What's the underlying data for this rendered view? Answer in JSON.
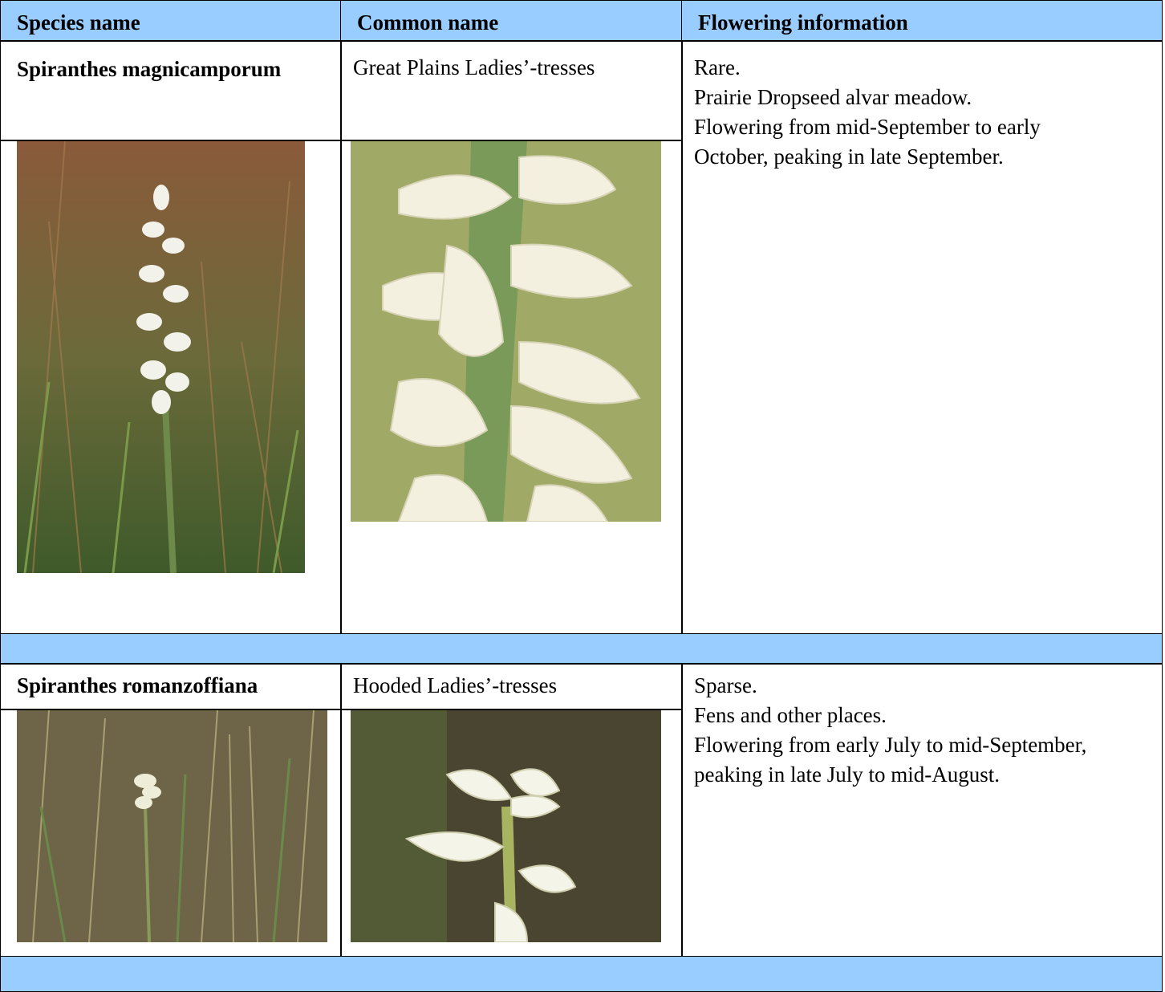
{
  "table": {
    "header": [
      "Species name",
      "Common name",
      "Flowering information"
    ],
    "rows": [
      {
        "species": "Spiranthes magnicamporum",
        "common": "Great Plains Ladies’-tresses",
        "flowering": [
          "Rare.",
          "Prairie Dropseed alvar meadow.",
          "Flowering from mid-September to early October, peaking in late September."
        ]
      },
      {
        "species": "Spiranthes romanzoffiana",
        "common": "Hooded Ladies’-tresses",
        "flowering": [
          "Sparse.",
          "Fens and other places.",
          "Flowering from early July to mid-September, peaking in late July to mid-August."
        ]
      }
    ]
  }
}
